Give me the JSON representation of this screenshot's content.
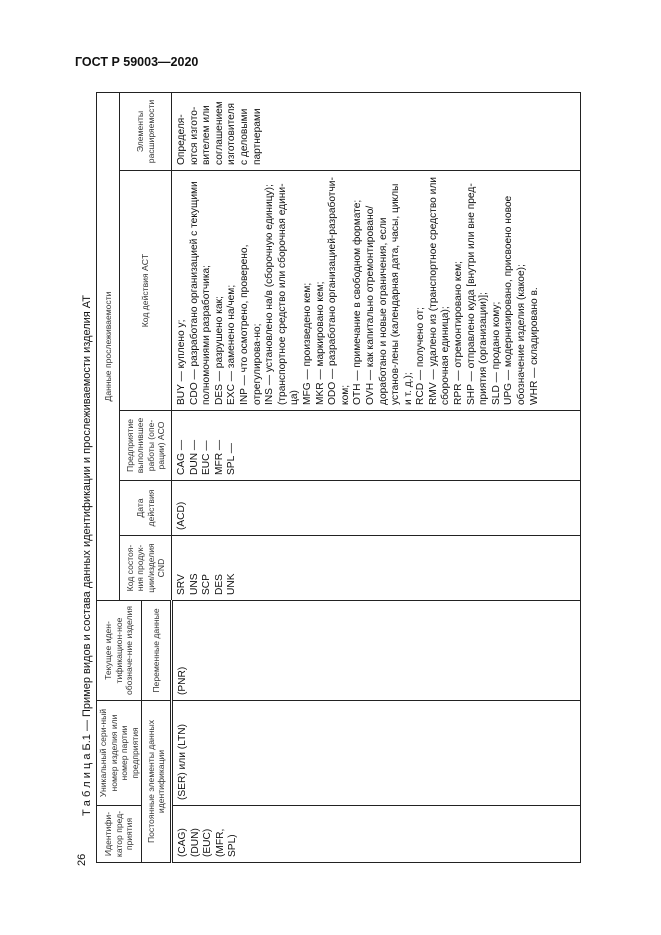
{
  "document": {
    "header": "ГОСТ Р 59003—2020",
    "page_number": "26"
  },
  "table": {
    "caption": "Т а б л и ц а  Б.1 — Пример видов и состава данных идентификации и прослеживаемости изделия АТ",
    "headers": {
      "identifier": "Идентифи-катор пред-приятия",
      "unique_serial": "Уникальный сери-ный номер изделия или номер партии предприятия",
      "current_id": "Текущее иден-тификацион-ное обозначе-ние изделия",
      "traceability": "Данные прослеживаемости",
      "cnd": "Код состоя-ния продук-ции/изделия CND",
      "date": "Дата действия",
      "aco": "Предприятие выполнившее работы (опе-рации) ACO",
      "act": "Код действия ACT",
      "ext": "Элементы расширяемости",
      "permanent": "Постоянные элементы данных идентификации",
      "variable": "Переменные данные"
    },
    "row": {
      "identifier": [
        "(CAG)",
        "(DUN)",
        "(EUC)",
        "(MFR,",
        "SPL)"
      ],
      "unique_serial": "(SER) или (LTN)",
      "current_id": "(PNR)",
      "cnd": [
        "SRV",
        "UNS",
        "SCP",
        "DES",
        "UNK"
      ],
      "date": "(ACD)",
      "aco": [
        "CAG —",
        "DUN —",
        "EUC —",
        "MFR —",
        "SPL —"
      ],
      "act": [
        "BUY — куплено у;",
        "CDO — разработано организацией с текущими полномочиями разработчика;",
        "DES — разрушено как;",
        "EXC — заменено на/чем;",
        "INP — что осмотрено, проверено, отрегулирова-но;",
        "INS — установлено на/в (сборочную единицу); (транспортное средство или сборочная едини-ца)",
        "MFG — произведено кем;",
        "MKR — маркировано кем;",
        "ODO — разработано организацией-разработчи-ком;",
        "OTH — примечание в свободном формате;",
        "OVH — как капитально отремонтировано/ доработано и новые ограничения, если установ-лены (календарная дата, часы, циклы и т. д.);",
        "RCD — получено от;",
        "RMV — удалено из (транспортное средство или сборочная единица);",
        "RPR — отремонтировано кем;",
        "SHP — отправлено куда [внутри или вне пред-приятия (организации)];",
        "SLD — продано кому;",
        "UPG — модернизировано, присвоено новое обозначение изделия (какое);",
        "WHR — складировано в."
      ],
      "ext": "Определя-ются изгото-вителем или соглашением изготовителя с деловыми партнерами"
    }
  }
}
